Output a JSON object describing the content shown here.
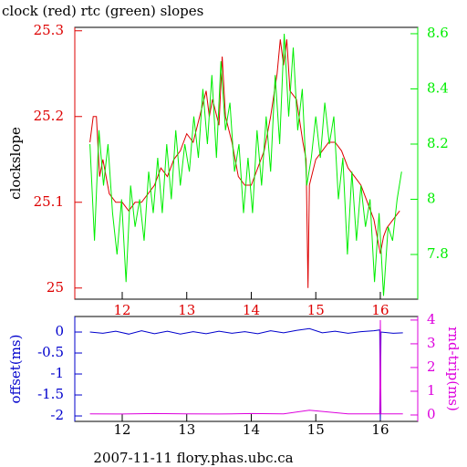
{
  "chart_data": [
    {
      "type": "line",
      "title": "clock (red) rtc (green) slopes",
      "y_label": "clockslope",
      "xlim": [
        11.265,
        16.58
      ],
      "xticks": [
        12,
        13,
        14,
        15,
        16
      ],
      "ylim": [
        24.987,
        25.304
      ],
      "yticks": [
        25,
        25.1,
        25.2,
        25.3
      ],
      "y2lim": [
        7.638,
        8.623
      ],
      "y2ticks": [
        7.8,
        8,
        8.2,
        8.4,
        8.6
      ],
      "series": [
        {
          "color": "#dd0000",
          "axis": "y",
          "x": [
            11.5,
            11.55,
            11.6,
            11.65,
            11.7,
            11.8,
            11.9,
            12.0,
            12.1,
            12.2,
            12.3,
            12.4,
            12.5,
            12.6,
            12.7,
            12.8,
            12.9,
            13.0,
            13.1,
            13.2,
            13.3,
            13.35,
            13.4,
            13.5,
            13.55,
            13.6,
            13.7,
            13.8,
            13.9,
            14.0,
            14.1,
            14.2,
            14.3,
            14.4,
            14.45,
            14.5,
            14.55,
            14.6,
            14.7,
            14.8,
            14.85,
            14.88,
            14.9,
            15.0,
            15.1,
            15.2,
            15.3,
            15.4,
            15.5,
            15.6,
            15.7,
            15.8,
            15.9,
            16.0,
            16.05,
            16.1,
            16.2,
            16.3
          ],
          "values": [
            25.17,
            25.2,
            25.2,
            25.13,
            25.15,
            25.11,
            25.1,
            25.1,
            25.09,
            25.1,
            25.1,
            25.11,
            25.12,
            25.14,
            25.13,
            25.15,
            25.16,
            25.18,
            25.17,
            25.2,
            25.23,
            25.2,
            25.22,
            25.19,
            25.27,
            25.2,
            25.17,
            25.13,
            25.12,
            25.12,
            25.14,
            25.16,
            25.2,
            25.25,
            25.29,
            25.26,
            25.29,
            25.23,
            25.22,
            25.17,
            25.15,
            25.0,
            25.12,
            25.15,
            25.16,
            25.17,
            25.17,
            25.16,
            25.14,
            25.13,
            25.12,
            25.1,
            25.08,
            25.04,
            25.06,
            25.07,
            25.08,
            25.09
          ]
        },
        {
          "color": "#00ee00",
          "axis": "y2",
          "x": [
            11.5,
            11.57,
            11.64,
            11.71,
            11.78,
            11.85,
            11.92,
            11.99,
            12.06,
            12.13,
            12.2,
            12.27,
            12.34,
            12.41,
            12.48,
            12.55,
            12.62,
            12.69,
            12.76,
            12.83,
            12.9,
            12.97,
            13.04,
            13.11,
            13.18,
            13.25,
            13.32,
            13.39,
            13.46,
            13.53,
            13.6,
            13.67,
            13.74,
            13.81,
            13.88,
            13.95,
            14.02,
            14.09,
            14.16,
            14.23,
            14.3,
            14.37,
            14.44,
            14.51,
            14.58,
            14.65,
            14.72,
            14.79,
            14.86,
            14.93,
            15.0,
            15.07,
            15.14,
            15.21,
            15.28,
            15.35,
            15.42,
            15.49,
            15.56,
            15.63,
            15.7,
            15.77,
            15.84,
            15.91,
            15.98,
            16.05,
            16.12,
            16.19,
            16.26,
            16.33
          ],
          "values": [
            8.2,
            7.85,
            8.25,
            8.05,
            8.2,
            7.95,
            7.8,
            8.0,
            7.7,
            8.05,
            7.9,
            8.0,
            7.85,
            8.1,
            7.95,
            8.15,
            7.95,
            8.2,
            8.0,
            8.25,
            8.05,
            8.2,
            8.1,
            8.3,
            8.15,
            8.4,
            8.2,
            8.45,
            8.15,
            8.5,
            8.25,
            8.35,
            8.1,
            8.2,
            7.95,
            8.15,
            7.95,
            8.25,
            8.05,
            8.3,
            8.1,
            8.45,
            8.2,
            8.6,
            8.3,
            8.55,
            8.25,
            8.4,
            8.05,
            8.15,
            8.3,
            8.15,
            8.35,
            8.2,
            8.3,
            8.0,
            8.15,
            7.8,
            8.1,
            7.85,
            8.05,
            7.9,
            8.0,
            7.7,
            7.95,
            7.65,
            7.9,
            7.85,
            8.0,
            8.1
          ]
        }
      ]
    },
    {
      "type": "line",
      "y_label": "offset(ms)",
      "y2_label": "rnd-trip(ms)",
      "x_label": "2007-11-11 flory.phas.ubc.ca",
      "xlim": [
        11.265,
        16.58
      ],
      "xticks": [
        12,
        13,
        14,
        15,
        16
      ],
      "ylim": [
        -2.13,
        0.37
      ],
      "yticks": [
        0,
        -0.5,
        -1,
        -1.5,
        -2
      ],
      "y2lim": [
        -0.27,
        4.15
      ],
      "y2ticks": [
        0,
        1,
        2,
        3,
        4
      ],
      "series": [
        {
          "color": "#0000cc",
          "axis": "y",
          "x": [
            11.5,
            11.7,
            11.9,
            12.1,
            12.3,
            12.5,
            12.7,
            12.9,
            13.1,
            13.3,
            13.5,
            13.7,
            13.9,
            14.1,
            14.3,
            14.5,
            14.7,
            14.9,
            15.1,
            15.3,
            15.5,
            15.7,
            15.9,
            15.99,
            16.0,
            16.01,
            16.2,
            16.35
          ],
          "values": [
            0,
            -0.03,
            0.02,
            -0.05,
            0.03,
            -0.04,
            0.02,
            -0.05,
            0.01,
            -0.04,
            0.02,
            -0.03,
            0.01,
            -0.04,
            0.03,
            -0.02,
            0.04,
            0.08,
            -0.02,
            0.02,
            -0.03,
            0.01,
            0.03,
            0.05,
            -2.1,
            0,
            -0.03,
            -0.02
          ]
        },
        {
          "color": "#dd00dd",
          "axis": "y2",
          "x": [
            11.5,
            12.0,
            12.5,
            13.0,
            13.5,
            14.0,
            14.5,
            14.9,
            15.5,
            15.99,
            16.0,
            16.01,
            16.35
          ],
          "values": [
            0.05,
            0.04,
            0.06,
            0.05,
            0.04,
            0.06,
            0.05,
            0.2,
            0.05,
            0.05,
            4.0,
            0.05,
            0.05
          ]
        }
      ]
    }
  ]
}
